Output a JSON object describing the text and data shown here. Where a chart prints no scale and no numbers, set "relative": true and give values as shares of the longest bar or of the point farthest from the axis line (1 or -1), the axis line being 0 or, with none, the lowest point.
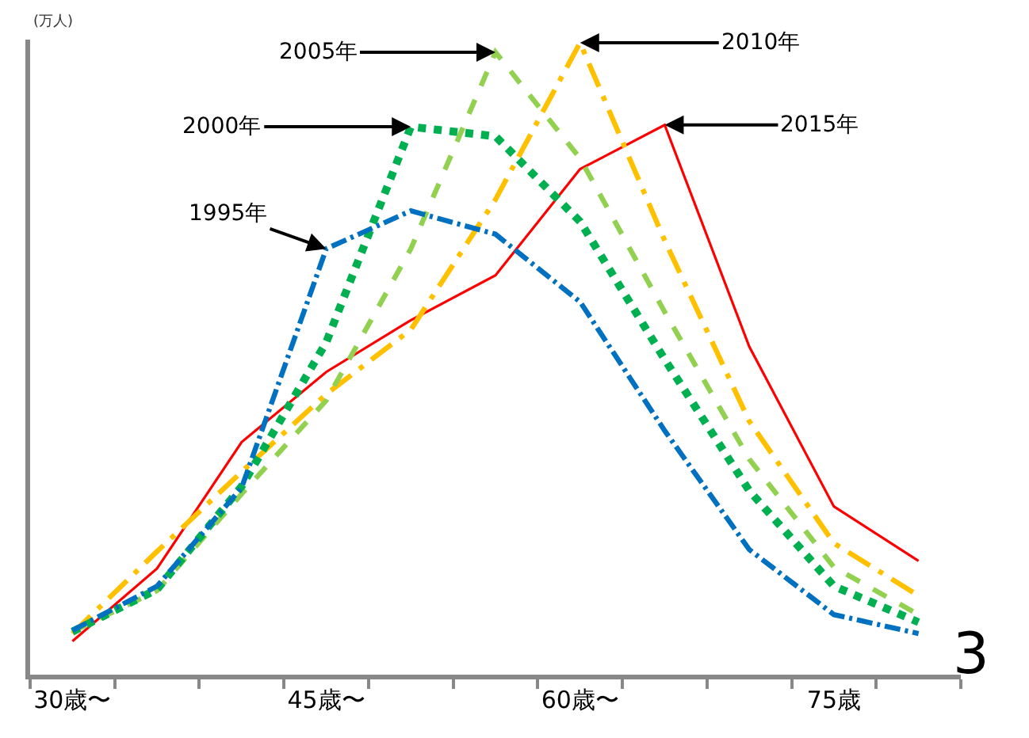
{
  "chart_data": {
    "type": "line",
    "relative": true,
    "ylabel": "(万人)",
    "categories": [
      "30歳〜",
      null,
      null,
      "45歳〜",
      null,
      null,
      "60歳〜",
      null,
      null,
      "75歳",
      null
    ],
    "series": [
      {
        "name": "1995年",
        "color": "#0070c0",
        "line_style": "dashdot",
        "values": [
          0.07,
          0.14,
          0.296,
          0.674,
          0.734,
          0.697,
          0.59,
          0.386,
          0.198,
          0.095,
          0.065
        ]
      },
      {
        "name": "2000年",
        "color": "#00b050",
        "line_style": "dotted",
        "values": [
          0.068,
          0.135,
          0.298,
          0.526,
          0.867,
          0.852,
          0.717,
          0.499,
          0.291,
          0.14,
          0.083
        ]
      },
      {
        "name": "2005年",
        "color": "#92d050",
        "line_style": "dashed",
        "values": [
          0.068,
          0.133,
          0.286,
          0.434,
          0.674,
          0.985,
          0.817,
          0.574,
          0.341,
          0.17,
          0.095
        ]
      },
      {
        "name": "2010年",
        "color": "#ffc000",
        "line_style": "longdashdot",
        "values": [
          0.065,
          0.195,
          0.321,
          0.444,
          0.546,
          0.752,
          1.0,
          0.687,
          0.401,
          0.208,
          0.125
        ]
      },
      {
        "name": "2015年",
        "color": "#ff0000",
        "line_style": "solid",
        "values": [
          0.053,
          0.168,
          0.368,
          0.479,
          0.561,
          0.632,
          0.8,
          0.87,
          0.519,
          0.266,
          0.18
        ]
      }
    ],
    "annotations": [
      "3"
    ],
    "legend": false
  }
}
